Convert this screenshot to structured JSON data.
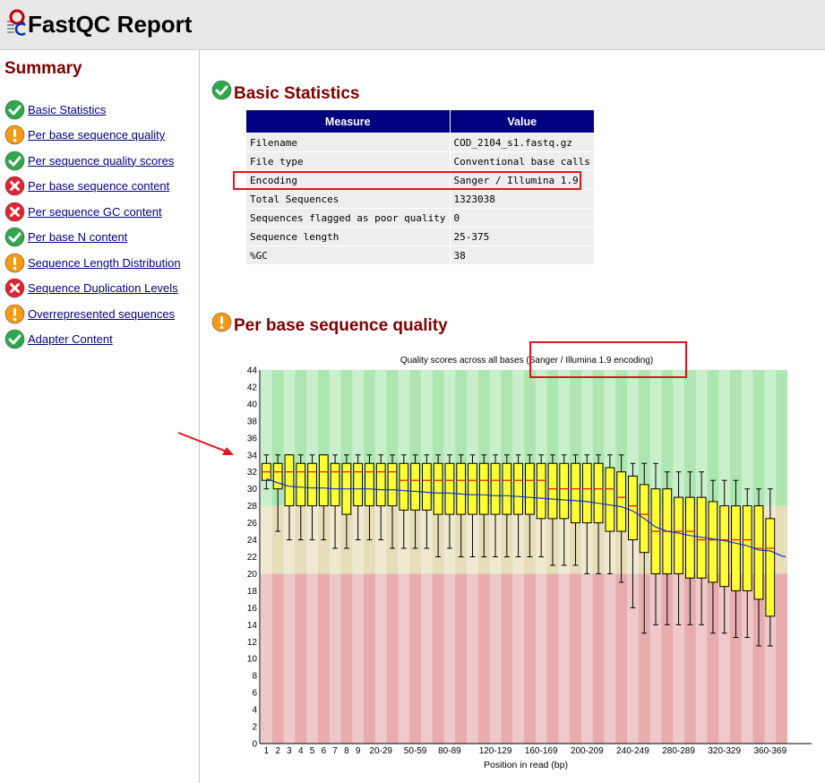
{
  "header": {
    "title": "FastQC Report",
    "logo_icon": "fastqc-logo"
  },
  "sidebar": {
    "title": "Summary",
    "items": [
      {
        "label": "Basic Statistics",
        "status": "pass"
      },
      {
        "label": "Per base sequence quality",
        "status": "warn"
      },
      {
        "label": "Per sequence quality scores",
        "status": "pass"
      },
      {
        "label": "Per base sequence content",
        "status": "fail"
      },
      {
        "label": "Per sequence GC content",
        "status": "fail"
      },
      {
        "label": "Per base N content",
        "status": "pass"
      },
      {
        "label": "Sequence Length Distribution",
        "status": "warn"
      },
      {
        "label": "Sequence Duplication Levels",
        "status": "fail"
      },
      {
        "label": "Overrepresented sequences",
        "status": "warn"
      },
      {
        "label": "Adapter Content",
        "status": "pass"
      }
    ]
  },
  "basic_stats": {
    "title": "Basic Statistics",
    "status": "pass",
    "headers": [
      "Measure",
      "Value"
    ],
    "rows": [
      [
        "Filename",
        "COD_2104_s1.fastq.gz"
      ],
      [
        "File type",
        "Conventional base calls"
      ],
      [
        "Encoding",
        "Sanger / Illumina 1.9"
      ],
      [
        "Total Sequences",
        "1323038"
      ],
      [
        "Sequences flagged as poor quality",
        "0"
      ],
      [
        "Sequence length",
        "25-375"
      ],
      [
        "%GC",
        "38"
      ]
    ]
  },
  "per_base_quality": {
    "title": "Per base sequence quality",
    "status": "warn"
  },
  "colors": {
    "pass": "#2da84a",
    "warn": "#f59a12",
    "fail": "#e0232e",
    "header_bg": "#000080",
    "section_title": "#800000",
    "highlight": "#e8121a",
    "zone_good": "#aee6b1",
    "zone_ok": "#e6ddb9",
    "zone_bad": "#e6acae",
    "box_fill": "#ffff33",
    "median": "#e8120c",
    "mean_line": "#2030c8"
  },
  "chart_data": {
    "type": "box",
    "title": "Quality scores across all bases (Sanger / Illumina 1.9 encoding)",
    "xlabel": "Position in read (bp)",
    "ylabel": "",
    "ylim": [
      0,
      44
    ],
    "yticks": [
      0,
      2,
      4,
      6,
      8,
      10,
      12,
      14,
      16,
      18,
      20,
      22,
      24,
      26,
      28,
      30,
      32,
      34,
      36,
      38,
      40,
      42,
      44
    ],
    "zones": {
      "good": [
        28,
        44
      ],
      "ok": [
        20,
        28
      ],
      "bad": [
        0,
        20
      ]
    },
    "categories": [
      "1",
      "2",
      "3",
      "4",
      "5",
      "6",
      "7",
      "8",
      "9",
      "10-19",
      "20-29",
      "30-39",
      "40-49",
      "50-59",
      "60-69",
      "70-79",
      "80-89",
      "90-99",
      "100-109",
      "110-119",
      "120-129",
      "130-139",
      "140-149",
      "150-159",
      "160-169",
      "170-179",
      "180-189",
      "190-199",
      "200-209",
      "210-219",
      "220-229",
      "230-239",
      "240-249",
      "250-259",
      "260-269",
      "270-279",
      "280-289",
      "290-299",
      "300-309",
      "310-319",
      "320-329",
      "330-339",
      "340-349",
      "350-359",
      "360-369",
      "370-375"
    ],
    "xtick_labels": [
      "1",
      "2",
      "3",
      "4",
      "5",
      "6",
      "7",
      "8",
      "9",
      "20-29",
      "50-59",
      "80-89",
      "120-129",
      "160-169",
      "200-209",
      "240-249",
      "280-289",
      "320-329",
      "360-369"
    ],
    "series": [
      {
        "name": "lower whisker",
        "values": [
          30,
          25,
          24,
          24,
          24,
          24,
          23,
          23,
          24,
          24,
          24,
          23,
          23,
          23,
          23,
          22,
          23,
          22,
          22,
          22,
          22,
          22,
          22,
          22,
          22,
          21,
          21,
          21,
          20,
          20,
          20,
          19,
          16,
          13,
          14,
          14,
          14,
          14,
          14,
          13,
          13,
          12.5,
          12.5,
          11.5,
          11.5,
          null
        ]
      },
      {
        "name": "lower quartile",
        "values": [
          31,
          30,
          28,
          28,
          28,
          28,
          28,
          27,
          28,
          28,
          28,
          28,
          27.5,
          27.5,
          27.5,
          27,
          27,
          27,
          27,
          27,
          27,
          27,
          27,
          27,
          26.5,
          26.5,
          26.5,
          26,
          26,
          26,
          25,
          25,
          24,
          22.5,
          20,
          20,
          20,
          19.5,
          19.5,
          19,
          18.5,
          18,
          18,
          17,
          15,
          null
        ]
      },
      {
        "name": "median",
        "values": [
          32,
          32,
          32,
          32,
          32,
          32,
          32,
          32,
          32,
          32,
          32,
          32,
          31,
          31,
          31,
          31,
          31,
          31,
          31,
          31,
          31,
          31,
          31,
          31,
          31,
          30,
          30,
          30,
          30,
          30,
          30,
          29,
          28,
          27,
          25,
          25,
          25,
          25,
          24,
          24,
          24,
          24,
          24,
          23,
          23,
          null
        ]
      },
      {
        "name": "upper quartile",
        "values": [
          33,
          33,
          34,
          33,
          33,
          34,
          33,
          33,
          33,
          33,
          33,
          33,
          33,
          33,
          33,
          33,
          33,
          33,
          33,
          33,
          33,
          33,
          33,
          33,
          33,
          33,
          33,
          33,
          33,
          33,
          32.5,
          32,
          31.5,
          30.5,
          30,
          30,
          29,
          29,
          29,
          28.5,
          28,
          28,
          28,
          28,
          26.5,
          null
        ]
      },
      {
        "name": "upper whisker",
        "values": [
          34,
          34,
          34,
          34,
          34,
          34,
          34,
          34,
          34,
          34,
          34,
          34,
          34,
          34,
          34,
          34,
          34,
          34,
          34,
          34,
          34,
          34,
          34,
          34,
          34,
          34,
          34,
          34,
          34,
          34,
          34,
          34,
          33,
          33,
          33,
          32,
          32,
          32,
          32,
          31,
          31,
          31,
          30,
          30,
          30,
          null
        ]
      },
      {
        "name": "mean",
        "values": [
          31.2,
          30.7,
          30.3,
          30.2,
          30.1,
          30.1,
          30,
          30,
          30,
          30,
          29.9,
          29.9,
          29.8,
          29.7,
          29.6,
          29.5,
          29.5,
          29.4,
          29.3,
          29.3,
          29.2,
          29.2,
          29.1,
          29,
          28.9,
          28.8,
          28.7,
          28.6,
          28.5,
          28.3,
          28.1,
          27.9,
          27.4,
          26.5,
          25.5,
          25,
          24.8,
          24.5,
          24.3,
          24.1,
          23.9,
          23.6,
          23.3,
          22.8,
          22.7,
          22.1
        ]
      }
    ]
  }
}
